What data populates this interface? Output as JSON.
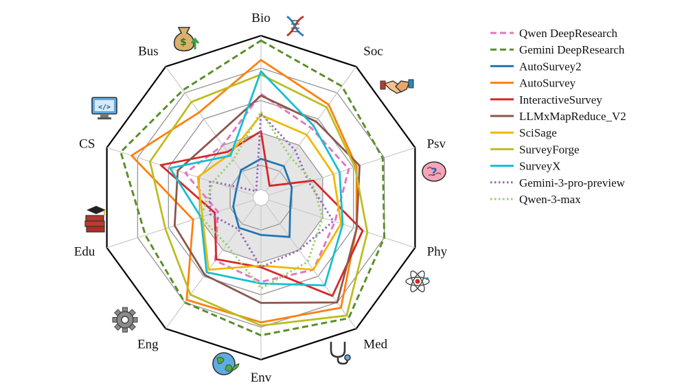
{
  "chart_data": {
    "type": "radar",
    "title": "",
    "axes": [
      "Bio",
      "Soc",
      "Psv",
      "Phy",
      "Med",
      "Env",
      "Eng",
      "Edu",
      "CS",
      "Bus"
    ],
    "axis_icons": [
      "dna-icon",
      "handshake-icon",
      "brain-icon",
      "atom-icon",
      "stethoscope-icon",
      "earth-icon",
      "gear-icon",
      "books-icon",
      "monitor-code-icon",
      "money-bag-icon"
    ],
    "range": [
      0,
      1
    ],
    "rings": 5,
    "grid": true,
    "legend_position": "top-right",
    "series": [
      {
        "name": "Qwen DeepResearch",
        "color": "#e377c2",
        "dash": "dashed",
        "values": [
          0.64,
          0.53,
          0.57,
          0.48,
          0.55,
          0.52,
          0.48,
          0.28,
          0.49,
          0.4
        ]
      },
      {
        "name": "Gemini DeepResearch",
        "color": "#5a8f29",
        "dash": "dashed",
        "values": [
          0.97,
          0.85,
          0.79,
          0.8,
          0.92,
          0.85,
          0.8,
          0.75,
          0.91,
          0.82
        ]
      },
      {
        "name": "AutoSurvey2",
        "color": "#1f77b4",
        "dash": "solid",
        "values": [
          0.24,
          0.24,
          0.2,
          0.19,
          0.3,
          0.23,
          0.23,
          0.18,
          0.16,
          0.21
        ]
      },
      {
        "name": "AutoSurvey",
        "color": "#ff7f0e",
        "dash": "solid",
        "values": [
          0.85,
          0.71,
          0.62,
          0.62,
          0.84,
          0.77,
          0.78,
          0.44,
          0.84,
          0.65
        ]
      },
      {
        "name": "InteractiveSurvey",
        "color": "#d62728",
        "dash": "solid",
        "values": [
          0.41,
          0.09,
          0.34,
          0.66,
          0.75,
          0.43,
          0.47,
          0.3,
          0.65,
          0.35
        ]
      },
      {
        "name": "LLMxMapReduce_V2",
        "color": "#8c564b",
        "dash": "solid",
        "values": [
          0.63,
          0.58,
          0.64,
          0.62,
          0.8,
          0.65,
          0.59,
          0.56,
          0.54,
          0.47
        ]
      },
      {
        "name": "SciSage",
        "color": "#f2b701",
        "dash": "solid",
        "values": [
          0.51,
          0.48,
          0.47,
          0.52,
          0.55,
          0.42,
          0.55,
          0.38,
          0.41,
          0.33
        ]
      },
      {
        "name": "SurveyForge",
        "color": "#bcbd22",
        "dash": "solid",
        "values": [
          0.76,
          0.69,
          0.61,
          0.69,
          0.9,
          0.79,
          0.74,
          0.62,
          0.72,
          0.73
        ]
      },
      {
        "name": "SurveyX",
        "color": "#17becf",
        "dash": "solid",
        "values": [
          0.78,
          0.55,
          0.51,
          0.53,
          0.67,
          0.53,
          0.57,
          0.39,
          0.59,
          0.32
        ]
      },
      {
        "name": "Gemini-3-pro-preview",
        "color": "#9467bd",
        "dash": "dotted",
        "values": [
          0.52,
          0.36,
          0.31,
          0.47,
          0.4,
          0.43,
          0.24,
          0.33,
          0.33,
          0.05
        ]
      },
      {
        "name": "Qwen-3-max",
        "color": "#98d06a",
        "dash": "dotted",
        "values": [
          0.53,
          0.31,
          0.33,
          0.4,
          0.49,
          0.56,
          0.36,
          0.39,
          0.31,
          0.29
        ]
      }
    ]
  }
}
